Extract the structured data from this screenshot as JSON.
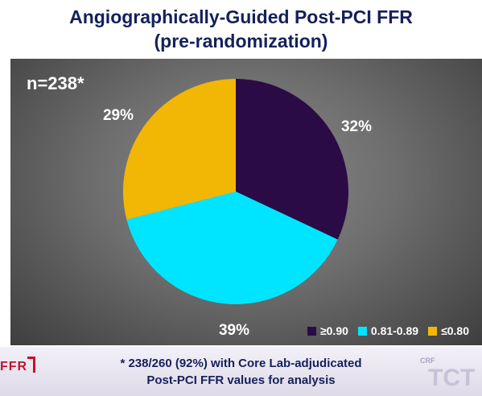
{
  "chart_data": {
    "type": "pie",
    "title": "Angiographically-Guided Post-PCI FFR\n(pre-randomization)",
    "annotation": "n=238*",
    "categories": [
      "≥0.90",
      "0.81-0.89",
      "≤0.80"
    ],
    "values": [
      32,
      39,
      29
    ],
    "value_labels": [
      "32%",
      "39%",
      "29%"
    ],
    "colors": [
      "#2b0b45",
      "#00e5ff",
      "#f2b705"
    ],
    "legend_placement": "bottom-right",
    "start_angle": "12 o'clock, clockwise"
  },
  "footer": {
    "footnote": "* 238/260 (92%) with Core Lab-adjudicated\nPost-PCI FFR values for analysis",
    "logo_left": "FFR",
    "logo_right_small": "CRF",
    "logo_right": "TCT"
  }
}
